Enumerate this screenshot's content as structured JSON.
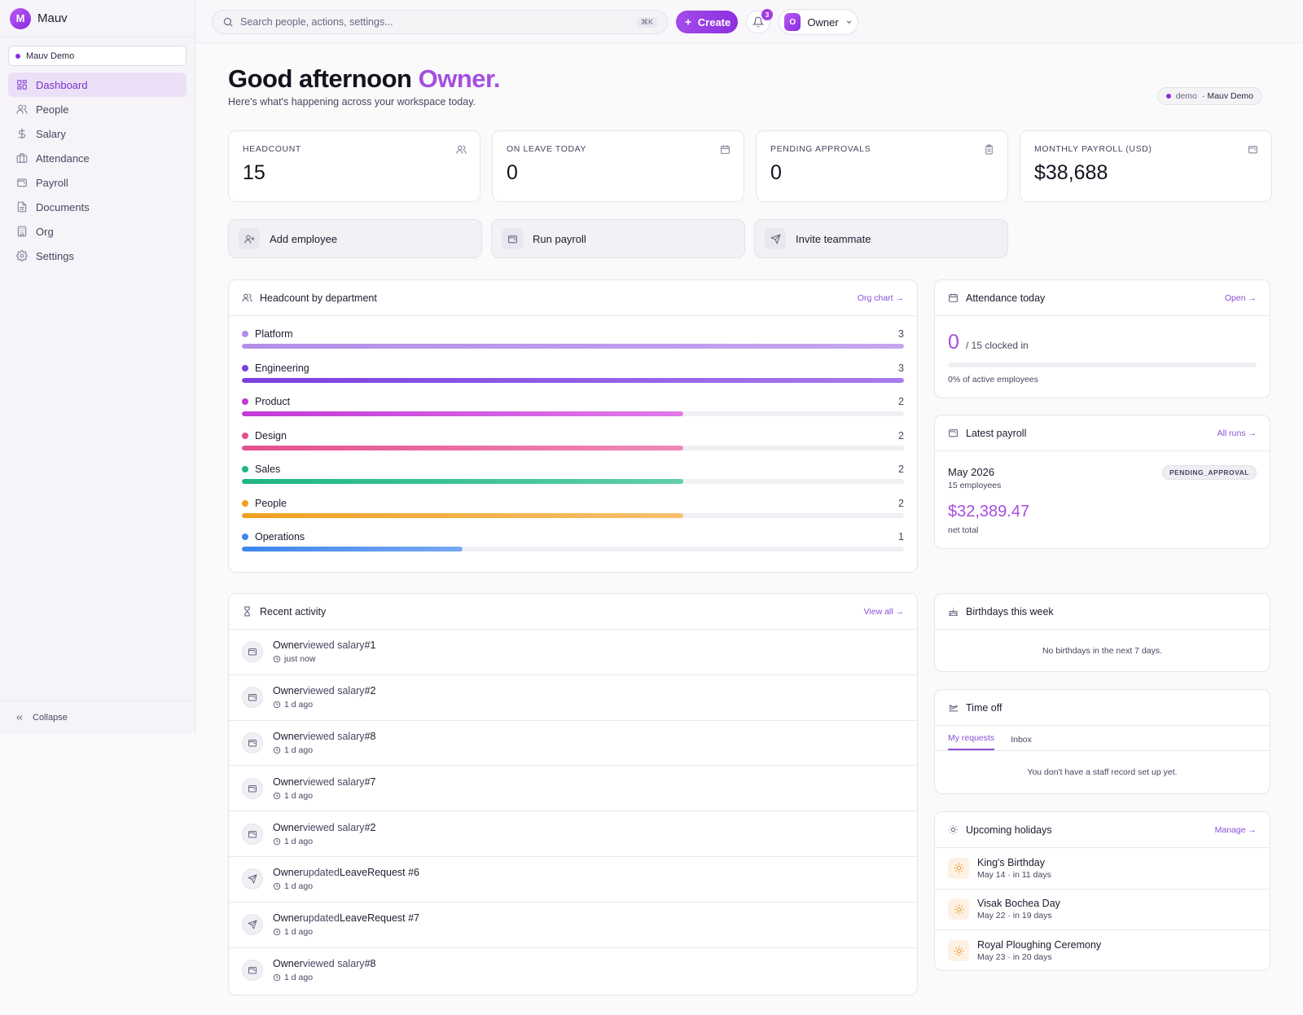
{
  "brand": {
    "logo_letter": "M",
    "name": "Mauv"
  },
  "workspace": {
    "name": "Mauv Demo"
  },
  "nav": [
    {
      "label": "Dashboard",
      "icon": "dashboard-icon",
      "active": true
    },
    {
      "label": "People",
      "icon": "users-icon"
    },
    {
      "label": "Salary",
      "icon": "dollar-icon"
    },
    {
      "label": "Attendance",
      "icon": "briefcase-icon"
    },
    {
      "label": "Payroll",
      "icon": "wallet-icon"
    },
    {
      "label": "Documents",
      "icon": "document-icon"
    },
    {
      "label": "Org",
      "icon": "building-icon"
    },
    {
      "label": "Settings",
      "icon": "gear-icon"
    }
  ],
  "collapse_label": "Collapse",
  "topbar": {
    "search_placeholder": "Search people, actions, settings...",
    "search_shortcut": "⌘K",
    "create_label": "Create",
    "notification_count": "3",
    "user_initial": "O",
    "user_name": "Owner"
  },
  "header": {
    "greeting": "Good afternoon",
    "name": "Owner.",
    "subtitle": "Here's what's happening across your workspace today.",
    "env_tag": "demo",
    "env_workspace": "· Mauv Demo"
  },
  "stats": [
    {
      "label": "HEADCOUNT",
      "value": "15",
      "icon": "users-icon"
    },
    {
      "label": "ON LEAVE TODAY",
      "value": "0",
      "icon": "calendar-icon"
    },
    {
      "label": "PENDING APPROVALS",
      "value": "0",
      "icon": "clipboard-icon"
    },
    {
      "label": "MONTHLY PAYROLL (USD)",
      "value": "$38,688",
      "icon": "wallet-icon"
    }
  ],
  "actions": [
    {
      "label": "Add employee",
      "icon": "user-plus-icon"
    },
    {
      "label": "Run payroll",
      "icon": "wallet-icon"
    },
    {
      "label": "Invite teammate",
      "icon": "send-icon"
    }
  ],
  "departments": {
    "title": "Headcount by department",
    "link": "Org chart →",
    "max": 3,
    "items": [
      {
        "name": "Platform",
        "count": 3,
        "color": "#b48ee8",
        "color2": "#c4a6f0"
      },
      {
        "name": "Engineering",
        "count": 3,
        "color": "#7a3fe0",
        "color2": "#a77cf0"
      },
      {
        "name": "Product",
        "count": 2,
        "color": "#c23ad6",
        "color2": "#e07ae8"
      },
      {
        "name": "Design",
        "count": 2,
        "color": "#e4508f",
        "color2": "#f08ab5"
      },
      {
        "name": "Sales",
        "count": 2,
        "color": "#1db585",
        "color2": "#5fd0a8"
      },
      {
        "name": "People",
        "count": 2,
        "color": "#f2a020",
        "color2": "#f7c070"
      },
      {
        "name": "Operations",
        "count": 1,
        "color": "#3c86ec",
        "color2": "#7aa9f2"
      }
    ]
  },
  "attendance": {
    "title": "Attendance today",
    "link": "Open →",
    "clocked": "0",
    "of_total": "/ 15 clocked in",
    "pct": 0,
    "footer": "0% of active employees"
  },
  "payroll": {
    "title": "Latest payroll",
    "link": "All runs →",
    "month": "May 2026",
    "employees": "15 employees",
    "status": "PENDING_APPROVAL",
    "amount": "$32,389.47",
    "net_label": "net total"
  },
  "activity": {
    "title": "Recent activity",
    "link": "View all →",
    "items": [
      {
        "actor": "Owner",
        "verb": "viewed salary",
        "target": "#1",
        "time": "just now",
        "icon": "wallet-icon"
      },
      {
        "actor": "Owner",
        "verb": "viewed salary",
        "target": "#2",
        "time": "1 d ago",
        "icon": "wallet-icon"
      },
      {
        "actor": "Owner",
        "verb": "viewed salary",
        "target": "#8",
        "time": "1 d ago",
        "icon": "wallet-icon"
      },
      {
        "actor": "Owner",
        "verb": "viewed salary",
        "target": "#7",
        "time": "1 d ago",
        "icon": "wallet-icon"
      },
      {
        "actor": "Owner",
        "verb": "viewed salary",
        "target": "#2",
        "time": "1 d ago",
        "icon": "wallet-icon"
      },
      {
        "actor": "Owner",
        "verb": "updated",
        "target": "LeaveRequest #6",
        "time": "1 d ago",
        "icon": "send-icon"
      },
      {
        "actor": "Owner",
        "verb": "updated",
        "target": "LeaveRequest #7",
        "time": "1 d ago",
        "icon": "send-icon"
      },
      {
        "actor": "Owner",
        "verb": "viewed salary",
        "target": "#8",
        "time": "1 d ago",
        "icon": "wallet-icon"
      }
    ]
  },
  "birthdays": {
    "title": "Birthdays this week",
    "empty": "No birthdays in the next 7 days."
  },
  "timeoff": {
    "title": "Time off",
    "tabs": [
      "My requests",
      "Inbox"
    ],
    "empty": "You don't have a staff record set up yet."
  },
  "holidays": {
    "title": "Upcoming holidays",
    "link": "Manage →",
    "items": [
      {
        "name": "King's Birthday",
        "date": "May 14 · in 11 days"
      },
      {
        "name": "Visak Bochea Day",
        "date": "May 22 · in 19 days"
      },
      {
        "name": "Royal Ploughing Ceremony",
        "date": "May 23 · in 20 days"
      }
    ]
  }
}
